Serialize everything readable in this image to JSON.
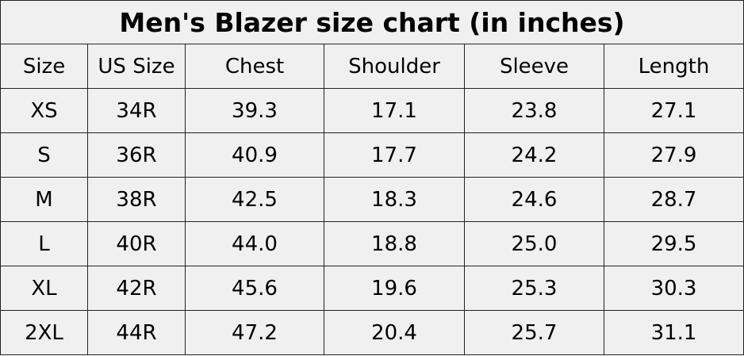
{
  "title": "Men's Blazer size chart (in inches)",
  "table": {
    "header": [
      "Size",
      "US Size",
      "Chest",
      "Shoulder",
      "Sleeve",
      "Length"
    ],
    "rows": [
      [
        "XS",
        "34R",
        "39.3",
        "17.1",
        "23.8",
        "27.1"
      ],
      [
        "S",
        "36R",
        "40.9",
        "17.7",
        "24.2",
        "27.9"
      ],
      [
        "M",
        "38R",
        "42.5",
        "18.3",
        "24.6",
        "28.7"
      ],
      [
        "L",
        "40R",
        "44.0",
        "18.8",
        "25.0",
        "29.5"
      ],
      [
        "XL",
        "42R",
        "45.6",
        "19.6",
        "25.3",
        "30.3"
      ],
      [
        "2XL",
        "44R",
        "47.2",
        "20.4",
        "25.7",
        "31.1"
      ]
    ]
  }
}
